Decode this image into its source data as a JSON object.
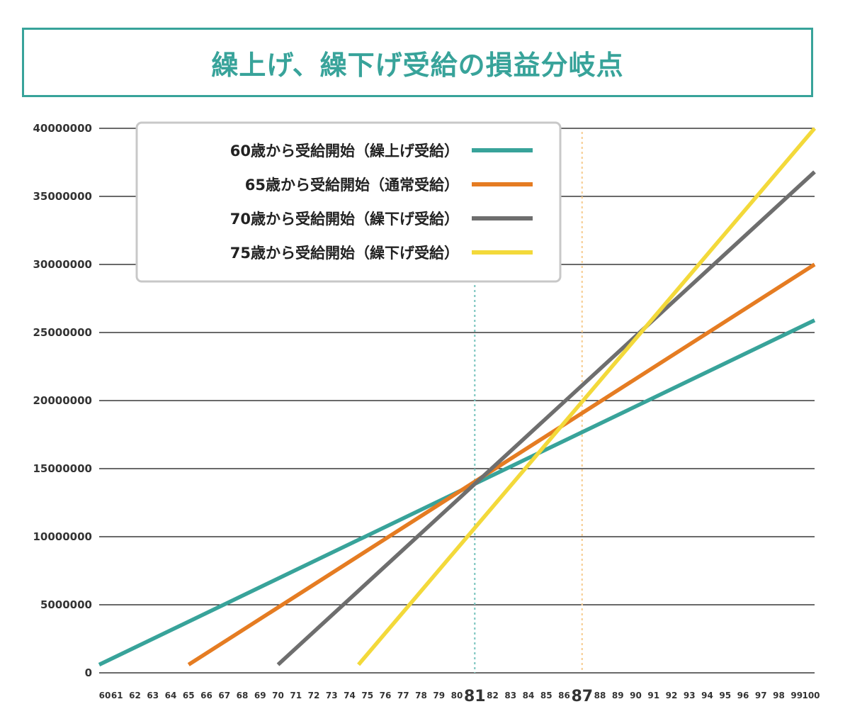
{
  "title": "繰上げ、繰下げ受給の損益分岐点",
  "chart_data": {
    "type": "line",
    "title": "繰上げ、繰下げ受給の損益分岐点",
    "xlabel": "",
    "ylabel": "",
    "xlim": [
      60,
      100
    ],
    "ylim": [
      0,
      40000000
    ],
    "yticks": [
      "0",
      "5000000",
      "10000000",
      "15000000",
      "20000000",
      "25000000",
      "30000000",
      "35000000",
      "40000000"
    ],
    "yticks_values": [
      0,
      5000000,
      10000000,
      15000000,
      20000000,
      25000000,
      30000000,
      35000000,
      40000000
    ],
    "xticks": [
      "60",
      "61",
      "62",
      "63",
      "64",
      "65",
      "66",
      "67",
      "68",
      "69",
      "70",
      "71",
      "72",
      "73",
      "74",
      "75",
      "76",
      "77",
      "78",
      "79",
      "80",
      "81",
      "82",
      "83",
      "84",
      "85",
      "86",
      "87",
      "88",
      "89",
      "90",
      "91",
      "92",
      "93",
      "94",
      "95",
      "96",
      "97",
      "98",
      "99",
      "100"
    ],
    "highlight_x": [
      81,
      87
    ],
    "grid": "horizontal",
    "legend_position": "top-left",
    "series": [
      {
        "name": "60歳から受給開始（繰上げ受給）",
        "color": "#38a39a",
        "x": [
          60,
          100
        ],
        "y": [
          600000,
          25900000
        ]
      },
      {
        "name": "65歳から受給開始（通常受給）",
        "color": "#e57c22",
        "x": [
          65,
          100
        ],
        "y": [
          600000,
          30000000
        ]
      },
      {
        "name": "70歳から受給開始（繰下げ受給）",
        "color": "#6e6e6e",
        "x": [
          70,
          100
        ],
        "y": [
          600000,
          36800000
        ]
      },
      {
        "name": "75歳から受給開始（繰下げ受給）",
        "color": "#f3d93a",
        "x": [
          74.5,
          100
        ],
        "y": [
          600000,
          40000000
        ]
      }
    ]
  }
}
